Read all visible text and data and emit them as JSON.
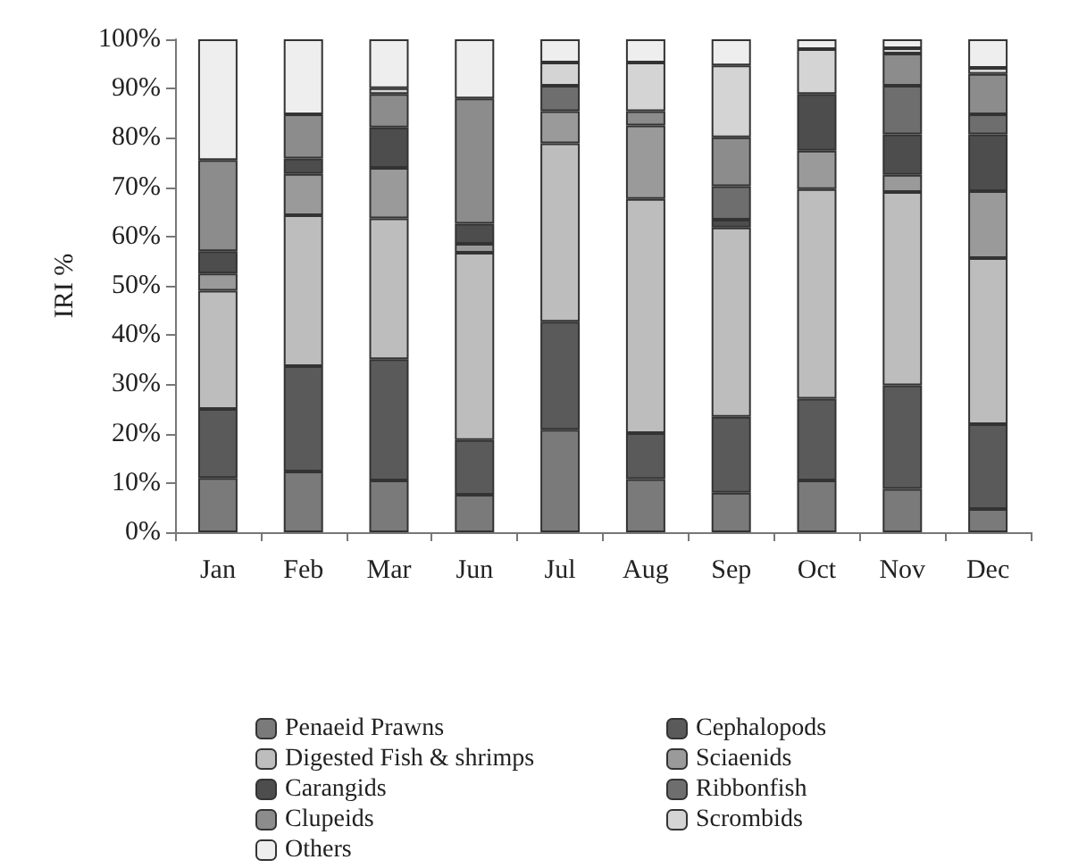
{
  "chart_data": {
    "type": "bar",
    "stacked": true,
    "ylabel": "IRI %",
    "categories": [
      "Jan",
      "Feb",
      "Mar",
      "Jun",
      "Jul",
      "Aug",
      "Sep",
      "Oct",
      "Nov",
      "Dec"
    ],
    "series": [
      {
        "name": "Penaeid Prawns",
        "color": "#7a7a7a",
        "values": [
          11,
          12.3,
          10.5,
          7.6,
          20.8,
          10.8,
          8,
          10.5,
          8.8,
          4.7
        ]
      },
      {
        "name": "Cephalopods",
        "color": "#5a5a5a",
        "values": [
          14,
          21.4,
          24.6,
          11.1,
          21.9,
          9.3,
          15.4,
          16.6,
          21,
          17.2
        ]
      },
      {
        "name": "Digested Fish & shrimps",
        "color": "#bdbdbd",
        "values": [
          24,
          30.6,
          28.6,
          38,
          36.2,
          47.5,
          38.4,
          42.5,
          39.2,
          33.7
        ]
      },
      {
        "name": "Sciaenids",
        "color": "#9a9a9a",
        "values": [
          3.5,
          8.4,
          10.2,
          1.8,
          6.5,
          14.9,
          0,
          7.8,
          3.5,
          13.6
        ]
      },
      {
        "name": "Carangids",
        "color": "#4d4d4d",
        "values": [
          4.5,
          3.1,
          8.2,
          4.1,
          0,
          0,
          1.6,
          11.5,
          8.2,
          11.5
        ]
      },
      {
        "name": "Ribbonfish",
        "color": "#6e6e6e",
        "values": [
          0,
          0,
          0,
          0,
          5.2,
          0,
          6.8,
          0,
          9.9,
          4.1
        ]
      },
      {
        "name": "Clupeids",
        "color": "#8c8c8c",
        "values": [
          18.5,
          9,
          6.8,
          25.4,
          0,
          2.9,
          9.9,
          0,
          6.5,
          8.2
        ]
      },
      {
        "name": "Scrombids",
        "color": "#d4d4d4",
        "values": [
          0,
          0,
          1.2,
          0,
          4.7,
          9.9,
          14.6,
          9.1,
          1.1,
          1.2
        ]
      },
      {
        "name": "Others",
        "color": "#eeeeee",
        "values": [
          24.5,
          15.2,
          9.9,
          12,
          4.7,
          4.7,
          5.3,
          2,
          1.8,
          5.8
        ]
      }
    ],
    "ylim": [
      0,
      100
    ],
    "yticks": [
      {
        "value": 0,
        "label": "0%"
      },
      {
        "value": 10,
        "label": "10%"
      },
      {
        "value": 20,
        "label": "20%"
      },
      {
        "value": 30,
        "label": "30%"
      },
      {
        "value": 40,
        "label": "40%"
      },
      {
        "value": 50,
        "label": "50%"
      },
      {
        "value": 60,
        "label": "60%"
      },
      {
        "value": 70,
        "label": "70%"
      },
      {
        "value": 80,
        "label": "80%"
      },
      {
        "value": 90,
        "label": "90%"
      },
      {
        "value": 100,
        "label": "100%"
      }
    ],
    "grid": false,
    "legend": "bottom"
  }
}
